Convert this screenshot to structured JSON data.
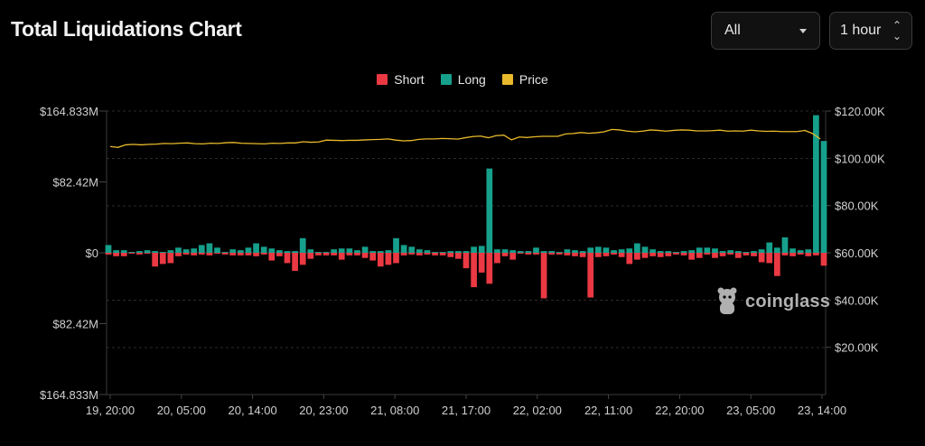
{
  "header": {
    "title": "Total Liquidations Chart",
    "symbol_select": {
      "value": "All"
    },
    "interval_select": {
      "value": "1 hour"
    }
  },
  "watermark": {
    "text": "coinglass"
  },
  "colors": {
    "short": "#ea3943",
    "long": "#16a08c",
    "price": "#e8b92a"
  },
  "chart_data": {
    "type": "bar",
    "legend": [
      "Short",
      "Long",
      "Price"
    ],
    "legend_position": "top-center",
    "grid": true,
    "x_ticks": [
      "19, 20:00",
      "20, 05:00",
      "20, 14:00",
      "20, 23:00",
      "21, 08:00",
      "21, 17:00",
      "22, 02:00",
      "22, 11:00",
      "22, 20:00",
      "23, 05:00",
      "23, 14:00"
    ],
    "left_axis": {
      "tick_labels": [
        "$164.833M",
        "$82.42M",
        "$0",
        "$82.42M",
        "$164.833M"
      ],
      "tick_values": [
        164.833,
        82.42,
        0,
        -82.42,
        -164.833
      ],
      "unit": "M USD"
    },
    "right_axis": {
      "tick_labels": [
        "$120.00K",
        "$100.00K",
        "$80.00K",
        "$60.00K",
        "$40.00K",
        "$20.00K"
      ],
      "tick_values": [
        120000,
        100000,
        80000,
        60000,
        40000,
        20000
      ],
      "ylim": [
        0,
        120000
      ]
    },
    "series": [
      {
        "name": "Long",
        "values_musd": [
          9,
          3,
          3,
          1,
          2,
          3,
          2,
          1,
          3,
          6,
          4,
          5,
          9,
          11,
          6,
          1,
          4,
          3,
          6,
          11,
          7,
          5,
          3,
          2,
          2,
          17,
          4,
          1,
          1,
          4,
          5,
          5,
          3,
          7,
          2,
          2,
          3,
          17,
          9,
          7,
          4,
          3,
          1,
          1,
          2,
          2,
          2,
          7,
          8,
          98,
          4,
          4,
          3,
          2,
          2,
          6,
          2,
          2,
          1,
          4,
          3,
          2,
          6,
          7,
          6,
          3,
          4,
          5,
          11,
          7,
          4,
          2,
          2,
          1,
          2,
          3,
          6,
          6,
          5,
          2,
          3,
          2,
          1,
          2,
          4,
          12,
          6,
          18,
          5,
          3,
          4,
          160,
          130
        ]
      },
      {
        "name": "Short",
        "values_musd": [
          -2,
          -4,
          -4,
          -1,
          -2,
          -1,
          -16,
          -13,
          -12,
          -4,
          -2,
          -3,
          -2,
          -3,
          -1,
          -2,
          -3,
          -3,
          -3,
          -4,
          -2,
          -9,
          -4,
          -12,
          -21,
          -14,
          -7,
          -3,
          -3,
          -3,
          -8,
          -3,
          -3,
          -6,
          -9,
          -16,
          -14,
          -12,
          -3,
          -2,
          -3,
          -2,
          -3,
          -3,
          -5,
          -7,
          -18,
          -40,
          -23,
          -36,
          -12,
          -4,
          -8,
          -1,
          -2,
          -2,
          -53,
          -2,
          -2,
          -3,
          -4,
          -5,
          -52,
          -5,
          -4,
          -2,
          -5,
          -13,
          -8,
          -6,
          -4,
          -5,
          -4,
          -2,
          -3,
          -8,
          -6,
          -2,
          -6,
          -4,
          -2,
          -6,
          -3,
          -4,
          -11,
          -12,
          -27,
          -3,
          -4,
          -2,
          -4,
          -3,
          -15
        ]
      },
      {
        "name": "Price",
        "values_usd": [
          105000,
          104600,
          105700,
          105900,
          105700,
          105900,
          106000,
          106300,
          106200,
          106400,
          106500,
          106200,
          106100,
          106400,
          106300,
          106600,
          106700,
          106400,
          106300,
          106200,
          106100,
          106400,
          106300,
          106500,
          106500,
          107000,
          106800,
          106900,
          107700,
          107600,
          107500,
          107600,
          107600,
          107800,
          107900,
          108000,
          108200,
          107700,
          107400,
          107500,
          108000,
          108200,
          108200,
          108400,
          108300,
          108100,
          108700,
          109200,
          109400,
          108700,
          109600,
          109800,
          107800,
          109000,
          108800,
          109100,
          109300,
          109300,
          109300,
          110300,
          110500,
          110900,
          110600,
          110800,
          111200,
          112200,
          112000,
          111500,
          111200,
          111500,
          112000,
          111800,
          111500,
          111800,
          112000,
          111900,
          111600,
          111600,
          111700,
          111900,
          111500,
          111600,
          111500,
          111900,
          111600,
          111400,
          111500,
          111300,
          111300,
          111300,
          111800,
          110500,
          108200
        ]
      }
    ]
  }
}
